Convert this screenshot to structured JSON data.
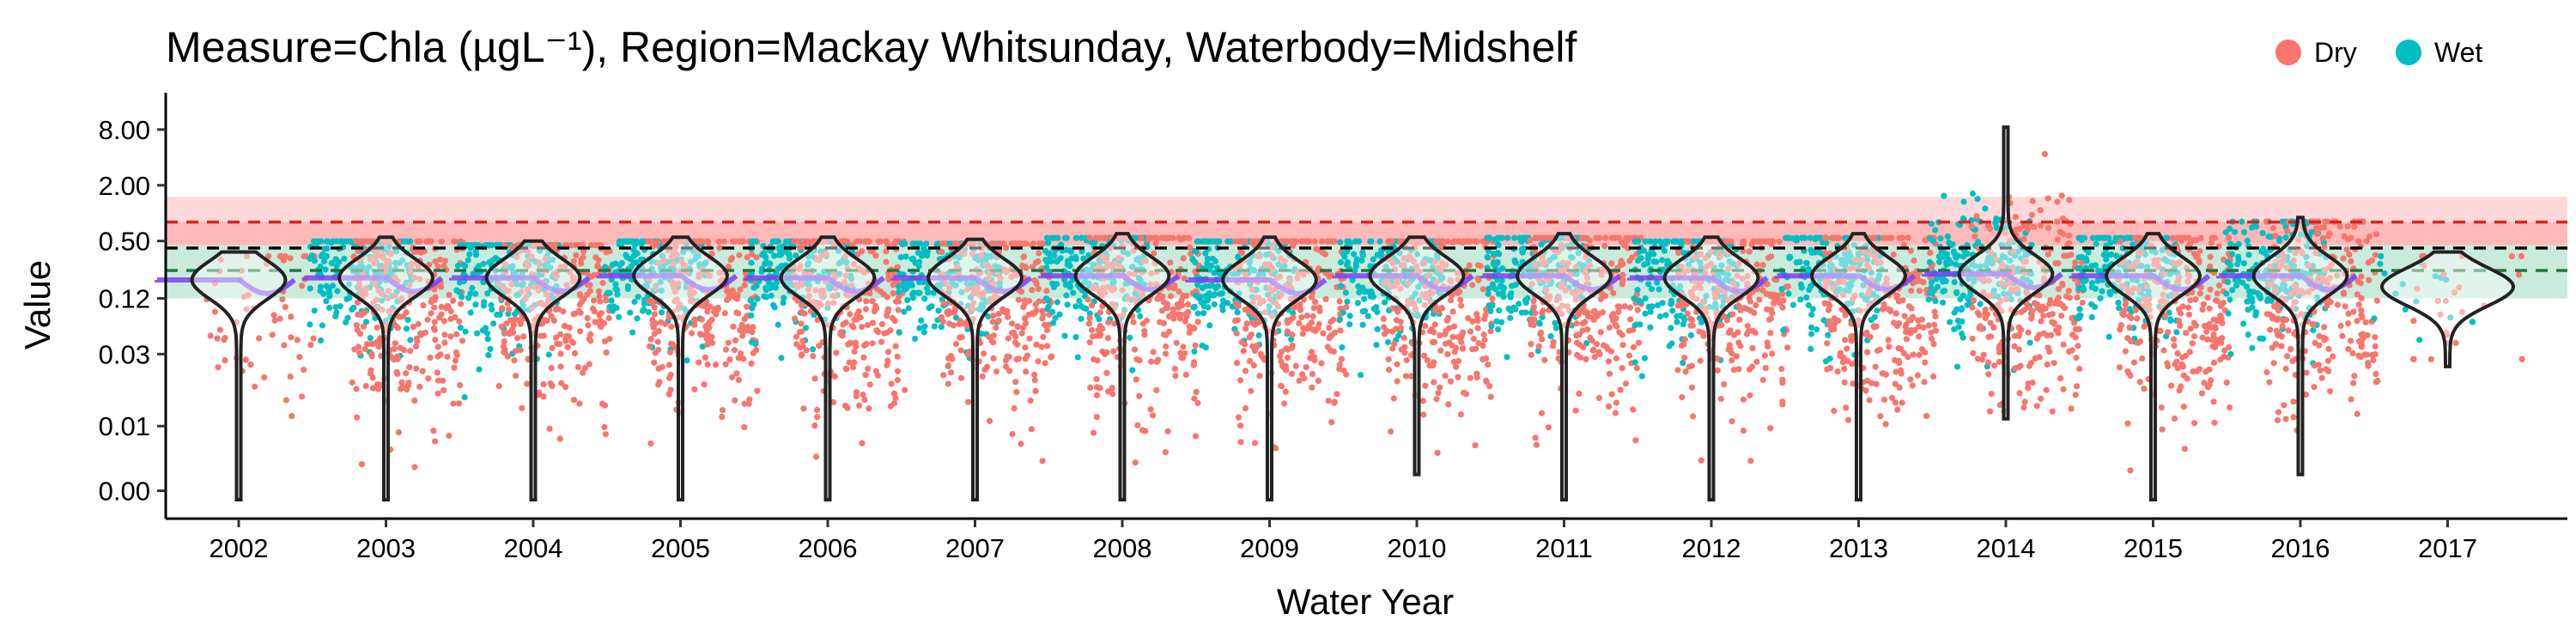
{
  "chart_data": {
    "type": "scatter",
    "title": "Measure=Chla (µgL⁻¹), Region=Mackay Whitsunday, Waterbody=Midshelf",
    "xlabel": "Water Year",
    "ylabel": "Value",
    "x_scale": "categorical",
    "y_scale": "log",
    "categories": [
      "2002",
      "2003",
      "2004",
      "2005",
      "2006",
      "2007",
      "2008",
      "2009",
      "2010",
      "2011",
      "2012",
      "2013",
      "2014",
      "2015",
      "2016",
      "2017"
    ],
    "yticks": [
      0.001,
      0.005,
      0.03,
      0.12,
      0.5,
      2.0,
      8.0
    ],
    "ytick_labels": [
      "0.00",
      "0.01",
      "0.03",
      "0.12",
      "0.50",
      "2.00",
      "8.00"
    ],
    "ylim": [
      0.0005,
      20
    ],
    "legend": {
      "position": "top-right",
      "entries": [
        {
          "name": "Dry",
          "color": "#F8766D"
        },
        {
          "name": "Wet",
          "color": "#00BFC4"
        }
      ]
    },
    "colors": {
      "dry": "#F8766D",
      "wet": "#00BFC4",
      "trend": "#7b3ff2",
      "violin_fill": "#ffffff",
      "violin_stroke": "#222222"
    },
    "reference_bands": [
      {
        "from": 0.45,
        "to": 1.5,
        "color": "#ffcccc",
        "alpha": 0.75
      },
      {
        "from": 0.45,
        "to": 0.8,
        "color": "#ff9e9e",
        "alpha": 0.55
      },
      {
        "from": 0.12,
        "to": 0.45,
        "color": "#b7e4cf",
        "alpha": 0.75
      }
    ],
    "reference_lines": [
      {
        "value": 0.8,
        "color": "#e02020",
        "style": "dashed"
      },
      {
        "value": 0.42,
        "color": "#000000",
        "style": "dashed"
      },
      {
        "value": 0.24,
        "color": "#1a7a3a",
        "style": "dashed"
      }
    ],
    "series": [
      {
        "year": "2002",
        "median": 0.19,
        "max": 0.38,
        "min": 0.0008,
        "dry_count": 60,
        "wet_count": 0
      },
      {
        "year": "2003",
        "median": 0.2,
        "max": 0.55,
        "min": 0.0008,
        "dry_count": 260,
        "wet_count": 200
      },
      {
        "year": "2004",
        "median": 0.2,
        "max": 0.5,
        "min": 0.0008,
        "dry_count": 260,
        "wet_count": 200
      },
      {
        "year": "2005",
        "median": 0.21,
        "max": 0.55,
        "min": 0.0008,
        "dry_count": 260,
        "wet_count": 200
      },
      {
        "year": "2006",
        "median": 0.2,
        "max": 0.55,
        "min": 0.0008,
        "dry_count": 260,
        "wet_count": 200
      },
      {
        "year": "2007",
        "median": 0.2,
        "max": 0.52,
        "min": 0.0008,
        "dry_count": 260,
        "wet_count": 200
      },
      {
        "year": "2008",
        "median": 0.21,
        "max": 0.6,
        "min": 0.0008,
        "dry_count": 260,
        "wet_count": 200
      },
      {
        "year": "2009",
        "median": 0.19,
        "max": 0.55,
        "min": 0.0008,
        "dry_count": 260,
        "wet_count": 200
      },
      {
        "year": "2010",
        "median": 0.21,
        "max": 0.55,
        "min": 0.0015,
        "dry_count": 260,
        "wet_count": 200
      },
      {
        "year": "2011",
        "median": 0.21,
        "max": 0.6,
        "min": 0.0008,
        "dry_count": 260,
        "wet_count": 200
      },
      {
        "year": "2012",
        "median": 0.2,
        "max": 0.55,
        "min": 0.0008,
        "dry_count": 260,
        "wet_count": 200
      },
      {
        "year": "2013",
        "median": 0.21,
        "max": 0.6,
        "min": 0.0008,
        "dry_count": 260,
        "wet_count": 200
      },
      {
        "year": "2014",
        "median": 0.22,
        "max": 8.5,
        "min": 0.006,
        "dry_count": 260,
        "wet_count": 200
      },
      {
        "year": "2015",
        "median": 0.21,
        "max": 0.6,
        "min": 0.0008,
        "dry_count": 260,
        "wet_count": 200
      },
      {
        "year": "2016",
        "median": 0.21,
        "max": 0.9,
        "min": 0.0015,
        "dry_count": 260,
        "wet_count": 200
      },
      {
        "year": "2017",
        "median": 0.16,
        "max": 0.38,
        "min": 0.022,
        "dry_count": 25,
        "wet_count": 15
      }
    ]
  }
}
